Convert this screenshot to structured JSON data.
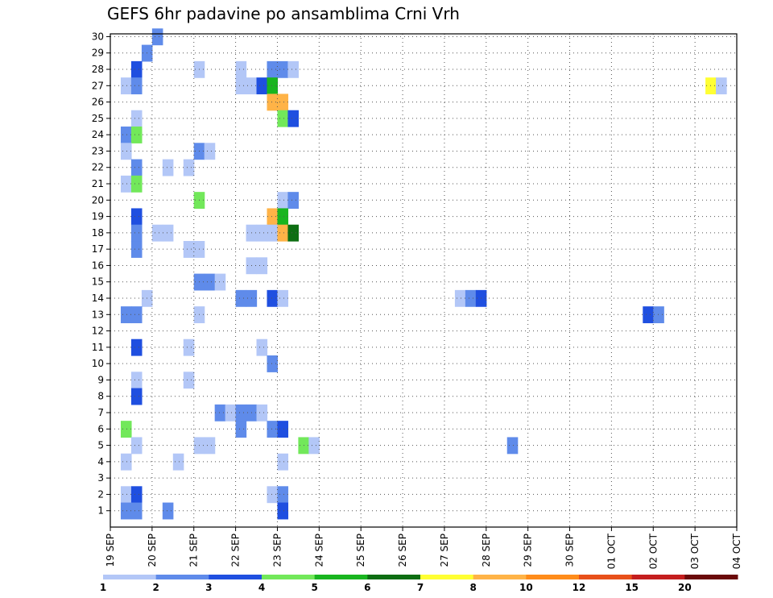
{
  "chart_data": {
    "type": "heatmap",
    "title": "GEFS 6hr padavine po ansamblima Crni Vrh",
    "x_unit": "6-hour steps",
    "x_range": [
      0,
      60
    ],
    "y_range": [
      0,
      30
    ],
    "grid": true,
    "x_tick_labels": [
      "19 SEP",
      "20 SEP",
      "21 SEP",
      "22 SEP",
      "23 SEP",
      "24 SEP",
      "25 SEP",
      "26 SEP",
      "27 SEP",
      "28 SEP",
      "29 SEP",
      "30 SEP",
      "01 OCT",
      "02 OCT",
      "03 OCT",
      "04 OCT"
    ],
    "y_tick_labels": [
      "1",
      "2",
      "3",
      "4",
      "5",
      "6",
      "7",
      "8",
      "9",
      "10",
      "11",
      "12",
      "13",
      "14",
      "15",
      "16",
      "17",
      "18",
      "19",
      "20",
      "21",
      "22",
      "23",
      "24",
      "25",
      "26",
      "27",
      "28",
      "29",
      "30"
    ],
    "legend": {
      "placement": "bottom",
      "labels": [
        "1",
        "2",
        "3",
        "4",
        "5",
        "6",
        "7",
        "8",
        "10",
        "12",
        "15",
        "20"
      ],
      "colors": [
        "#b3c7f7",
        "#5f8bea",
        "#1f4fe0",
        "#72e85a",
        "#19b51f",
        "#0d6e12",
        "#ffff33",
        "#ffb347",
        "#ff8c1a",
        "#e8501a",
        "#c41e1e",
        "#6b0a0a"
      ]
    },
    "cells": [
      [
        4,
        30,
        2
      ],
      [
        3,
        29,
        2
      ],
      [
        8,
        28,
        1
      ],
      [
        12,
        28,
        1
      ],
      [
        2,
        28,
        3
      ],
      [
        15,
        28,
        2
      ],
      [
        16,
        28,
        2
      ],
      [
        17,
        28,
        1
      ],
      [
        1,
        27,
        1
      ],
      [
        2,
        27,
        2
      ],
      [
        12,
        27,
        1
      ],
      [
        13,
        27,
        1
      ],
      [
        14,
        27,
        3
      ],
      [
        15,
        27,
        5
      ],
      [
        57,
        27,
        7
      ],
      [
        58,
        27,
        1
      ],
      [
        15,
        26,
        8
      ],
      [
        16,
        26,
        8
      ],
      [
        2,
        25,
        1
      ],
      [
        16,
        25,
        4
      ],
      [
        17,
        25,
        3
      ],
      [
        1,
        24,
        2
      ],
      [
        2,
        24,
        4
      ],
      [
        1,
        23,
        1
      ],
      [
        8,
        23,
        2
      ],
      [
        9,
        23,
        1
      ],
      [
        2,
        22,
        2
      ],
      [
        5,
        22,
        1
      ],
      [
        7,
        22,
        1
      ],
      [
        1,
        21,
        1
      ],
      [
        2,
        21,
        4
      ],
      [
        8,
        20,
        4
      ],
      [
        16,
        20,
        1
      ],
      [
        17,
        20,
        2
      ],
      [
        2,
        19,
        3
      ],
      [
        15,
        19,
        8
      ],
      [
        16,
        19,
        5
      ],
      [
        2,
        18,
        2
      ],
      [
        4,
        18,
        1
      ],
      [
        5,
        18,
        1
      ],
      [
        13,
        18,
        1
      ],
      [
        14,
        18,
        1
      ],
      [
        15,
        18,
        1
      ],
      [
        16,
        18,
        8
      ],
      [
        17,
        18,
        6
      ],
      [
        2,
        17,
        2
      ],
      [
        7,
        17,
        1
      ],
      [
        8,
        17,
        1
      ],
      [
        13,
        16,
        1
      ],
      [
        14,
        16,
        1
      ],
      [
        8,
        15,
        2
      ],
      [
        9,
        15,
        2
      ],
      [
        10,
        15,
        1
      ],
      [
        3,
        14,
        1
      ],
      [
        12,
        14,
        2
      ],
      [
        13,
        14,
        2
      ],
      [
        15,
        14,
        3
      ],
      [
        16,
        14,
        1
      ],
      [
        33,
        14,
        1
      ],
      [
        34,
        14,
        2
      ],
      [
        35,
        14,
        3
      ],
      [
        1,
        13,
        2
      ],
      [
        2,
        13,
        2
      ],
      [
        8,
        13,
        1
      ],
      [
        51,
        13,
        3
      ],
      [
        52,
        13,
        2
      ],
      [
        2,
        11,
        3
      ],
      [
        7,
        11,
        1
      ],
      [
        14,
        11,
        1
      ],
      [
        15,
        10,
        2
      ],
      [
        2,
        9,
        1
      ],
      [
        7,
        9,
        1
      ],
      [
        2,
        8,
        3
      ],
      [
        10,
        7,
        2
      ],
      [
        11,
        7,
        1
      ],
      [
        12,
        7,
        2
      ],
      [
        13,
        7,
        2
      ],
      [
        14,
        7,
        1
      ],
      [
        1,
        6,
        4
      ],
      [
        12,
        6,
        2
      ],
      [
        15,
        6,
        2
      ],
      [
        16,
        6,
        3
      ],
      [
        2,
        5,
        1
      ],
      [
        8,
        5,
        1
      ],
      [
        9,
        5,
        1
      ],
      [
        18,
        5,
        4
      ],
      [
        19,
        5,
        1
      ],
      [
        38,
        5,
        2
      ],
      [
        1,
        4,
        1
      ],
      [
        6,
        4,
        1
      ],
      [
        16,
        4,
        1
      ],
      [
        1,
        2,
        1
      ],
      [
        2,
        2,
        3
      ],
      [
        15,
        2,
        1
      ],
      [
        16,
        2,
        2
      ],
      [
        1,
        1,
        2
      ],
      [
        2,
        1,
        2
      ],
      [
        5,
        1,
        2
      ],
      [
        16,
        1,
        3
      ]
    ]
  }
}
